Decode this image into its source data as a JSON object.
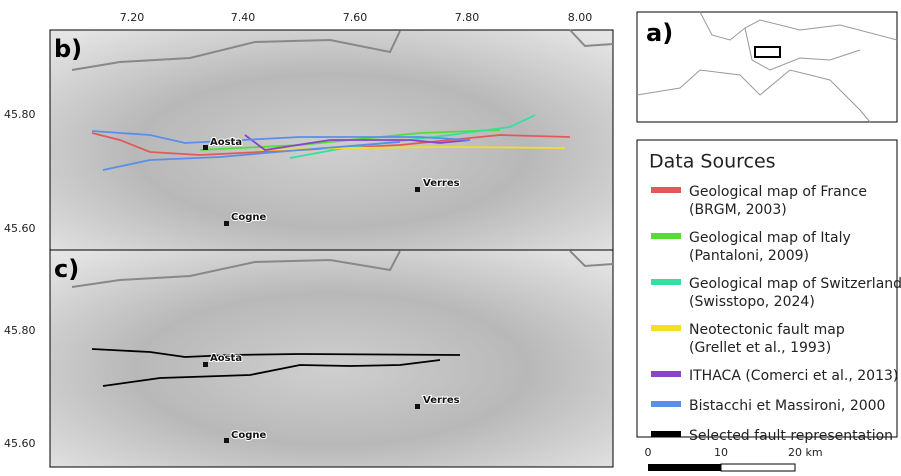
{
  "panels": {
    "b": {
      "label": "b)",
      "places": [
        "Aosta",
        "Cogne",
        "Verres"
      ]
    },
    "c": {
      "label": "c)",
      "places": [
        "Aosta",
        "Cogne",
        "Verres"
      ]
    },
    "a": {
      "label": "a)"
    }
  },
  "axes": {
    "top": [
      "7.20",
      "7.40",
      "7.60",
      "7.80",
      "8.00"
    ],
    "left_b": [
      "45.80",
      "45.60"
    ],
    "left_c": [
      "45.80",
      "45.60"
    ]
  },
  "legend": {
    "title": "Data Sources",
    "items": [
      {
        "lines": [
          "Geological map of France",
          "(BRGM, 2003)"
        ],
        "color": "#e05a5a"
      },
      {
        "lines": [
          "Geological map of Italy",
          "(Pantaloni, 2009)"
        ],
        "color": "#55dd33"
      },
      {
        "lines": [
          "Geological map of Switzerland",
          "(Swisstopo, 2024)"
        ],
        "color": "#33e0a0"
      },
      {
        "lines": [
          "Neotectonic fault map",
          "(Grellet et al., 1993)"
        ],
        "color": "#f2e020"
      },
      {
        "lines": [
          "ITHACA (Comerci et al., 2013)"
        ],
        "color": "#8a44cc"
      },
      {
        "lines": [
          "Bistacchi et Massironi, 2000"
        ],
        "color": "#5a8ee8"
      },
      {
        "lines": [
          "Selected fault representation"
        ],
        "color": "#000000"
      }
    ]
  },
  "scale": [
    "0",
    "10",
    "20 km"
  ]
}
